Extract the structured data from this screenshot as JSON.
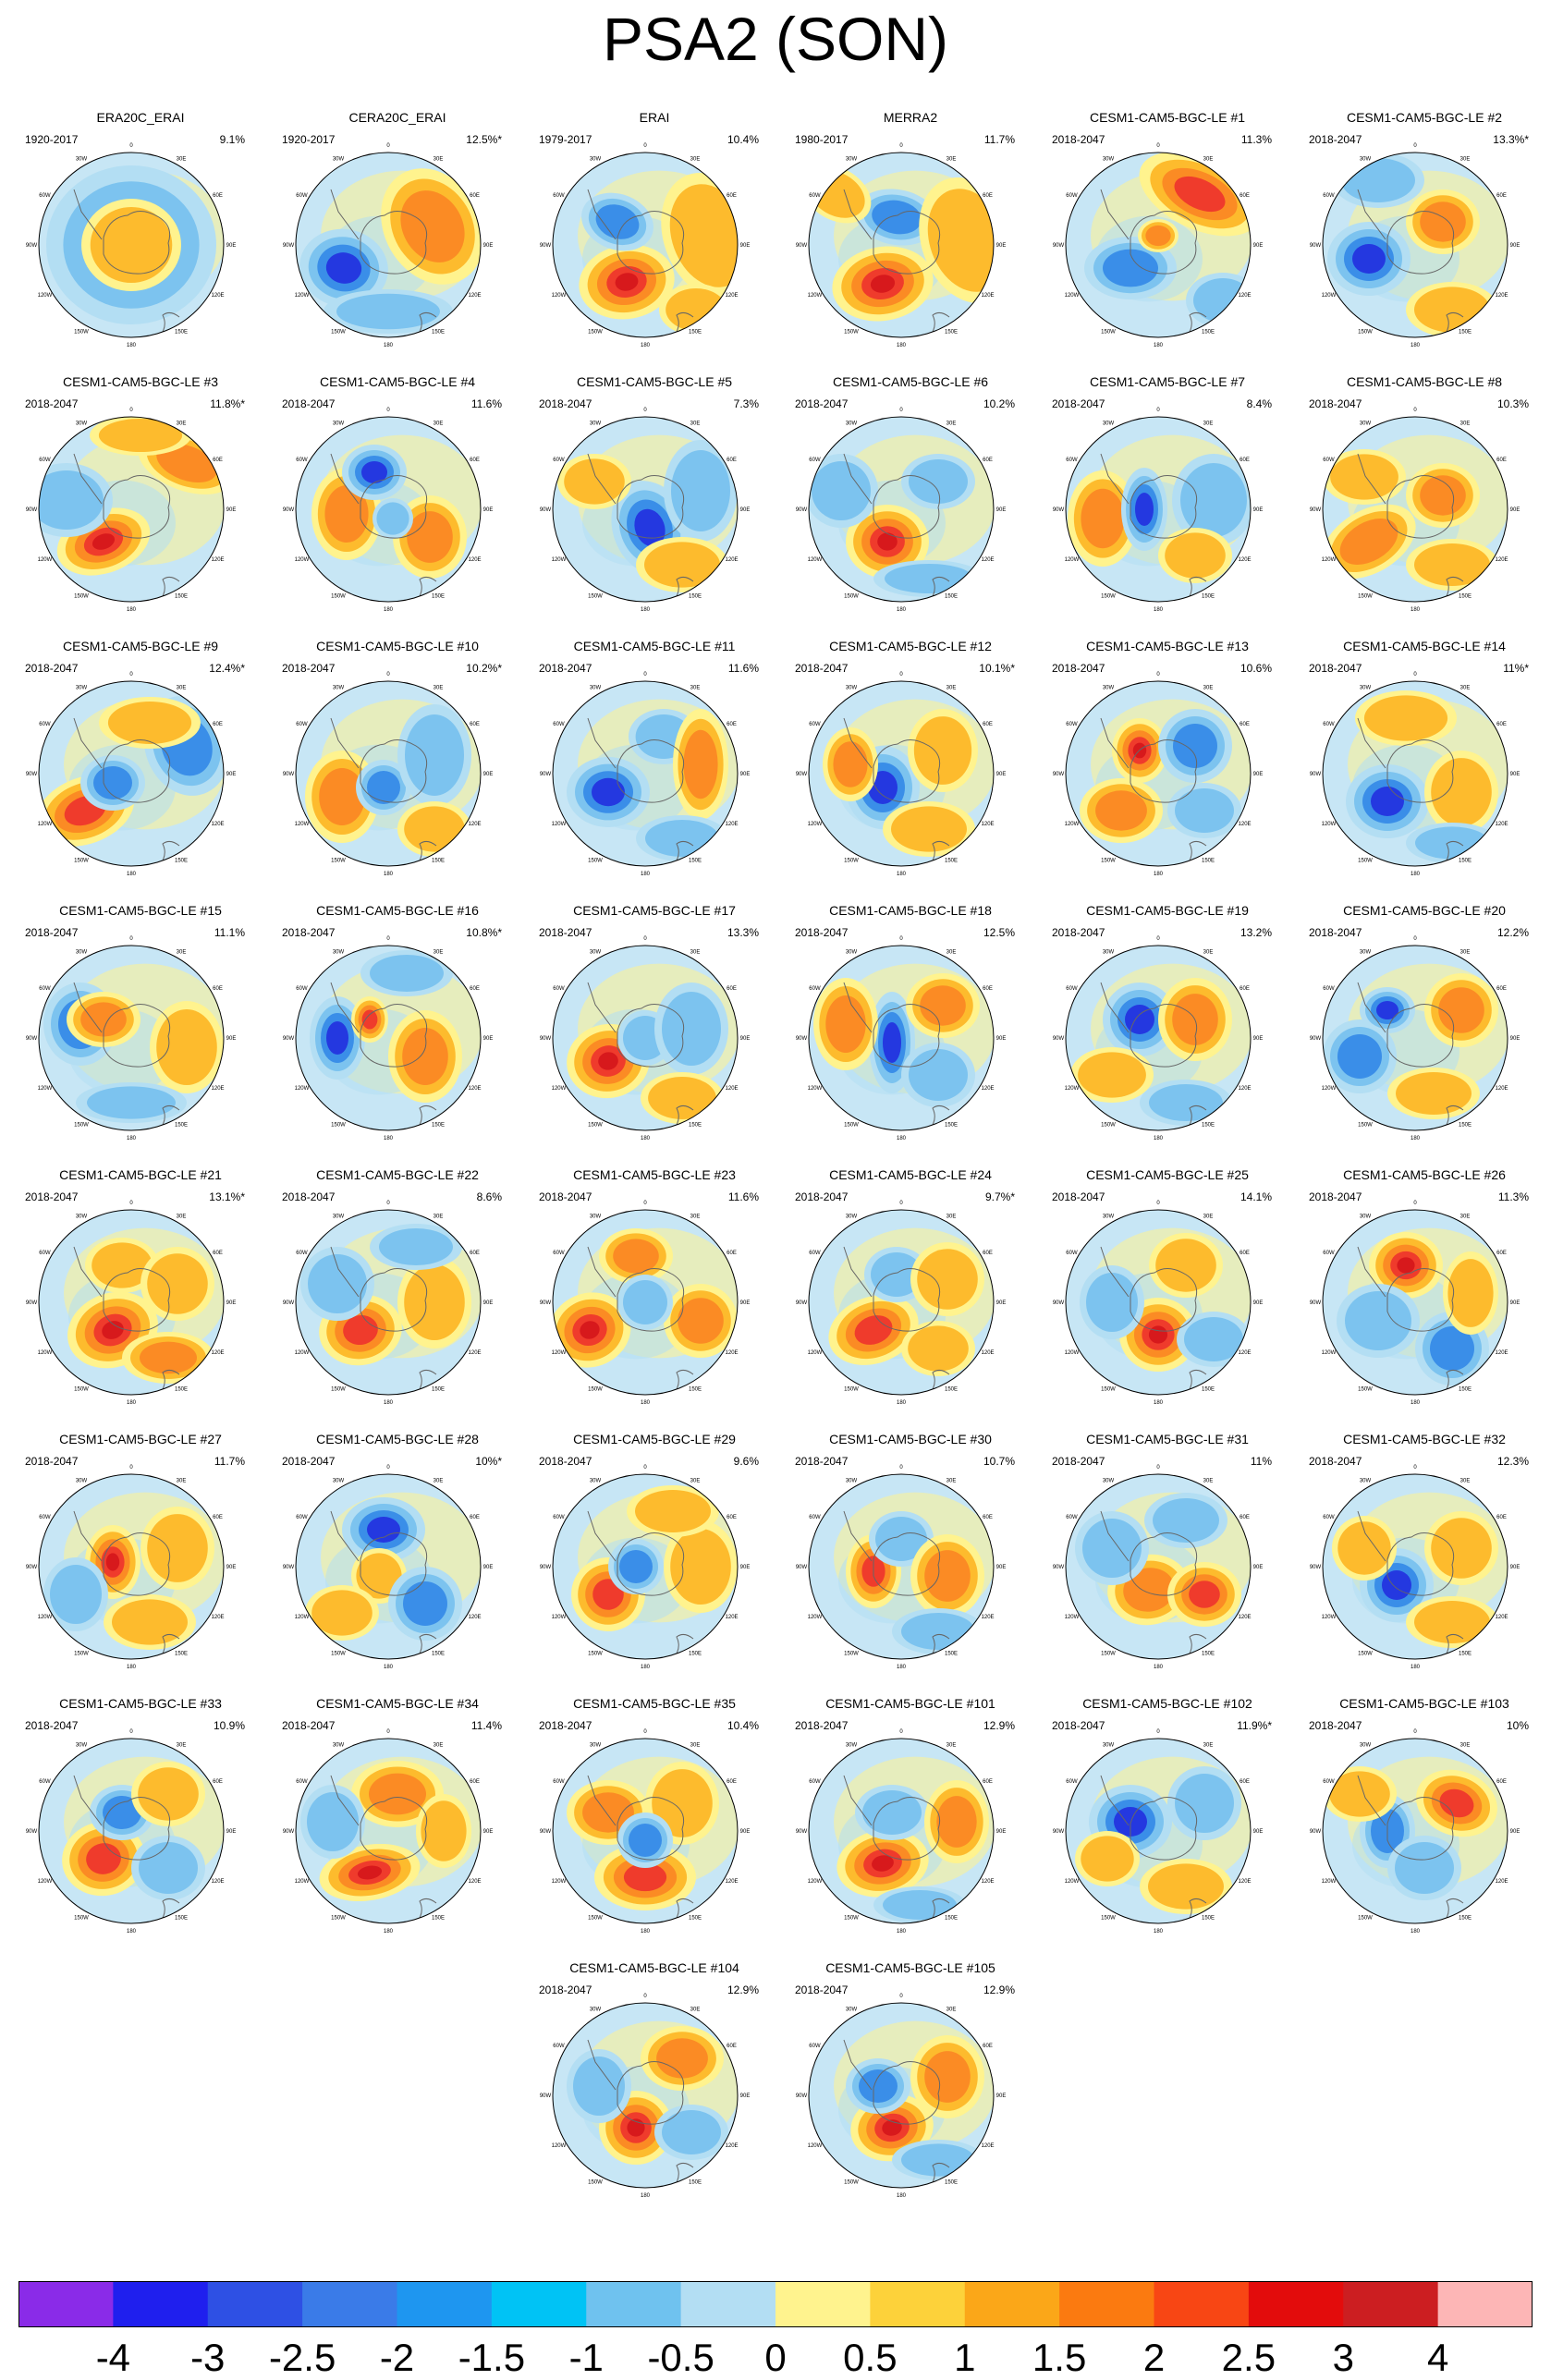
{
  "title": "PSA2 (SON)",
  "map_labels": {
    "lon_0": "0",
    "lon_30w": "30W",
    "lon_60w": "60W",
    "lon_90w": "90W",
    "lon_120w": "120W",
    "lon_150w": "150W",
    "lon_180": "180",
    "lon_150e": "150E",
    "lon_120e": "120E",
    "lon_90e": "90E",
    "lon_60e": "60E",
    "lon_30e": "30E"
  },
  "panels": [
    {
      "title": "ERA20C_ERAI",
      "years": "1920-2017",
      "pct": "9.1%"
    },
    {
      "title": "CERA20C_ERAI",
      "years": "1920-2017",
      "pct": "12.5%*"
    },
    {
      "title": "ERAI",
      "years": "1979-2017",
      "pct": "10.4%"
    },
    {
      "title": "MERRA2",
      "years": "1980-2017",
      "pct": "11.7%"
    },
    {
      "title": "CESM1-CAM5-BGC-LE #1",
      "years": "2018-2047",
      "pct": "11.3%"
    },
    {
      "title": "CESM1-CAM5-BGC-LE #2",
      "years": "2018-2047",
      "pct": "13.3%*"
    },
    {
      "title": "CESM1-CAM5-BGC-LE #3",
      "years": "2018-2047",
      "pct": "11.8%*"
    },
    {
      "title": "CESM1-CAM5-BGC-LE #4",
      "years": "2018-2047",
      "pct": "11.6%"
    },
    {
      "title": "CESM1-CAM5-BGC-LE #5",
      "years": "2018-2047",
      "pct": "7.3%"
    },
    {
      "title": "CESM1-CAM5-BGC-LE #6",
      "years": "2018-2047",
      "pct": "10.2%"
    },
    {
      "title": "CESM1-CAM5-BGC-LE #7",
      "years": "2018-2047",
      "pct": "8.4%"
    },
    {
      "title": "CESM1-CAM5-BGC-LE #8",
      "years": "2018-2047",
      "pct": "10.3%"
    },
    {
      "title": "CESM1-CAM5-BGC-LE #9",
      "years": "2018-2047",
      "pct": "12.4%*"
    },
    {
      "title": "CESM1-CAM5-BGC-LE #10",
      "years": "2018-2047",
      "pct": "10.2%*"
    },
    {
      "title": "CESM1-CAM5-BGC-LE #11",
      "years": "2018-2047",
      "pct": "11.6%"
    },
    {
      "title": "CESM1-CAM5-BGC-LE #12",
      "years": "2018-2047",
      "pct": "10.1%*"
    },
    {
      "title": "CESM1-CAM5-BGC-LE #13",
      "years": "2018-2047",
      "pct": "10.6%"
    },
    {
      "title": "CESM1-CAM5-BGC-LE #14",
      "years": "2018-2047",
      "pct": "11%*"
    },
    {
      "title": "CESM1-CAM5-BGC-LE #15",
      "years": "2018-2047",
      "pct": "11.1%"
    },
    {
      "title": "CESM1-CAM5-BGC-LE #16",
      "years": "2018-2047",
      "pct": "10.8%*"
    },
    {
      "title": "CESM1-CAM5-BGC-LE #17",
      "years": "2018-2047",
      "pct": "13.3%"
    },
    {
      "title": "CESM1-CAM5-BGC-LE #18",
      "years": "2018-2047",
      "pct": "12.5%"
    },
    {
      "title": "CESM1-CAM5-BGC-LE #19",
      "years": "2018-2047",
      "pct": "13.2%"
    },
    {
      "title": "CESM1-CAM5-BGC-LE #20",
      "years": "2018-2047",
      "pct": "12.2%"
    },
    {
      "title": "CESM1-CAM5-BGC-LE #21",
      "years": "2018-2047",
      "pct": "13.1%*"
    },
    {
      "title": "CESM1-CAM5-BGC-LE #22",
      "years": "2018-2047",
      "pct": "8.6%"
    },
    {
      "title": "CESM1-CAM5-BGC-LE #23",
      "years": "2018-2047",
      "pct": "11.6%"
    },
    {
      "title": "CESM1-CAM5-BGC-LE #24",
      "years": "2018-2047",
      "pct": "9.7%*"
    },
    {
      "title": "CESM1-CAM5-BGC-LE #25",
      "years": "2018-2047",
      "pct": "14.1%"
    },
    {
      "title": "CESM1-CAM5-BGC-LE #26",
      "years": "2018-2047",
      "pct": "11.3%"
    },
    {
      "title": "CESM1-CAM5-BGC-LE #27",
      "years": "2018-2047",
      "pct": "11.7%"
    },
    {
      "title": "CESM1-CAM5-BGC-LE #28",
      "years": "2018-2047",
      "pct": "10%*"
    },
    {
      "title": "CESM1-CAM5-BGC-LE #29",
      "years": "2018-2047",
      "pct": "9.6%"
    },
    {
      "title": "CESM1-CAM5-BGC-LE #30",
      "years": "2018-2047",
      "pct": "10.7%"
    },
    {
      "title": "CESM1-CAM5-BGC-LE #31",
      "years": "2018-2047",
      "pct": "11%"
    },
    {
      "title": "CESM1-CAM5-BGC-LE #32",
      "years": "2018-2047",
      "pct": "12.3%"
    },
    {
      "title": "CESM1-CAM5-BGC-LE #33",
      "years": "2018-2047",
      "pct": "10.9%"
    },
    {
      "title": "CESM1-CAM5-BGC-LE #34",
      "years": "2018-2047",
      "pct": "11.4%"
    },
    {
      "title": "CESM1-CAM5-BGC-LE #35",
      "years": "2018-2047",
      "pct": "10.4%"
    },
    {
      "title": "CESM1-CAM5-BGC-LE #101",
      "years": "2018-2047",
      "pct": "12.9%"
    },
    {
      "title": "CESM1-CAM5-BGC-LE #102",
      "years": "2018-2047",
      "pct": "11.9%*"
    },
    {
      "title": "CESM1-CAM5-BGC-LE #103",
      "years": "2018-2047",
      "pct": "10%"
    },
    {
      "title": "CESM1-CAM5-BGC-LE #104",
      "years": "2018-2047",
      "pct": "12.9%"
    },
    {
      "title": "CESM1-CAM5-BGC-LE #105",
      "years": "2018-2047",
      "pct": "12.9%"
    }
  ],
  "colorbar": {
    "labels": [
      "-4",
      "-3",
      "-2.5",
      "-2",
      "-1.5",
      "-1",
      "-0.5",
      "0",
      "0.5",
      "1",
      "1.5",
      "2",
      "2.5",
      "3",
      "4"
    ],
    "colors": [
      "#8a2be8",
      "#1f1fee",
      "#2e50e4",
      "#3a7be8",
      "#1e96f0",
      "#00c3f5",
      "#6fc2ef",
      "#b3def3",
      "#fff38e",
      "#fdd23a",
      "#fba718",
      "#fb7a10",
      "#f84614",
      "#e30c0c",
      "#cc1e21",
      "#fdb6b6"
    ],
    "palette": {
      "deep_red": "#d7191c",
      "red": "#ef3b2c",
      "orange": "#fb8b24",
      "amber": "#fdbb2d",
      "yellow": "#fff38e",
      "light_blue": "#b3def3",
      "sky": "#7cc3ef",
      "blue": "#3a8ee8",
      "deep_blue": "#2438e0"
    }
  }
}
